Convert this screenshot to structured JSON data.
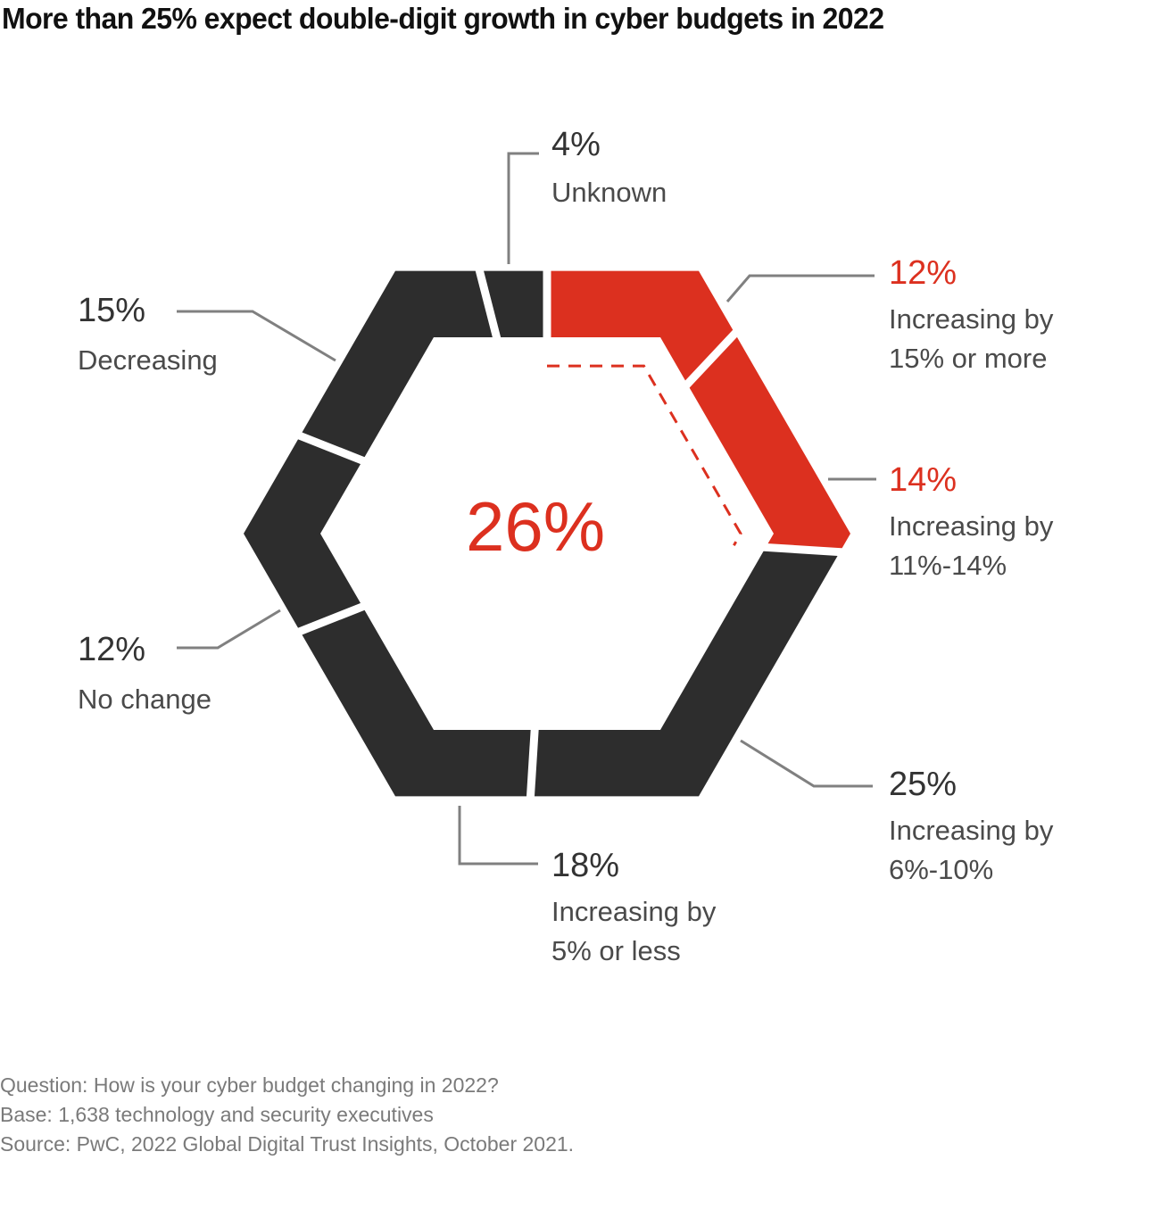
{
  "chart_data": {
    "type": "pie",
    "shape": "hexagonal-donut",
    "title": "More than 25% expect double-digit growth in cyber budgets in 2022",
    "center_label": "26%",
    "center_label_meaning": "Share expecting double-digit growth (12% + 14%)",
    "start": "top-center",
    "direction": "clockwise",
    "slices": [
      {
        "value": 12,
        "pct_label": "12%",
        "label": "Increasing by 15% or more",
        "label_lines": [
          "Increasing by",
          "15% or more"
        ],
        "color": "#dc301f"
      },
      {
        "value": 14,
        "pct_label": "14%",
        "label": "Increasing by 11%-14%",
        "label_lines": [
          "Increasing by",
          "11%-14%"
        ],
        "color": "#dc301f"
      },
      {
        "value": 25,
        "pct_label": "25%",
        "label": "Increasing by 6%-10%",
        "label_lines": [
          "Increasing by",
          "6%-10%"
        ],
        "color": "#2d2d2d"
      },
      {
        "value": 18,
        "pct_label": "18%",
        "label": "Increasing by 5% or less",
        "label_lines": [
          "Increasing by",
          "5% or less"
        ],
        "color": "#2d2d2d"
      },
      {
        "value": 12,
        "pct_label": "12%",
        "label": "No change",
        "label_lines": [
          "No change"
        ],
        "color": "#2d2d2d"
      },
      {
        "value": 15,
        "pct_label": "15%",
        "label": "Decreasing",
        "label_lines": [
          "Decreasing"
        ],
        "color": "#2d2d2d"
      },
      {
        "value": 4,
        "pct_label": "4%",
        "label": "Unknown",
        "label_lines": [
          "Unknown"
        ],
        "color": "#2d2d2d"
      }
    ],
    "highlight_bracket": {
      "covers_slices": [
        0,
        1
      ],
      "style": "dashed",
      "color": "#dc301f"
    },
    "leader_line_color": "#808080"
  },
  "footnotes": [
    "Question: How is your cyber budget changing in 2022?",
    "Base: 1,638 technology and security executives",
    "Source: PwC, 2022 Global Digital Trust Insights, October 2021."
  ]
}
